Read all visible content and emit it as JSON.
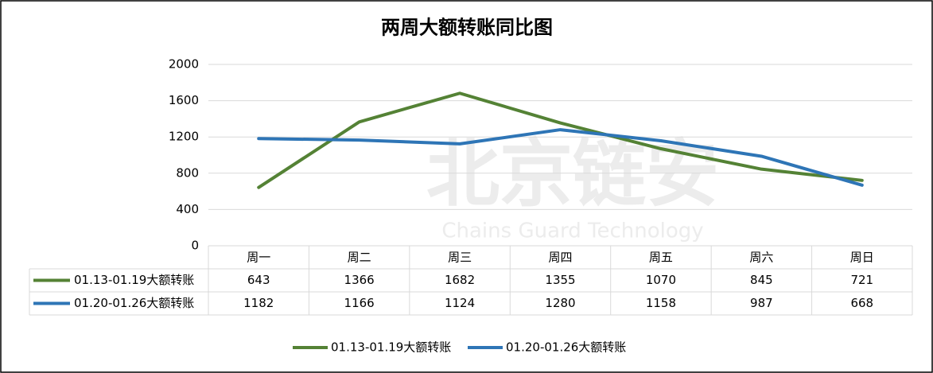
{
  "chart_data": {
    "type": "line",
    "title": "两周大额转账同比图",
    "categories": [
      "周一",
      "周二",
      "周三",
      "周四",
      "周五",
      "周六",
      "周日"
    ],
    "series": [
      {
        "name": "01.13-01.19大额转账",
        "color": "#548235",
        "values": [
          643,
          1366,
          1682,
          1355,
          1070,
          845,
          721
        ]
      },
      {
        "name": "01.20-01.26大额转账",
        "color": "#2e75b6",
        "values": [
          1182,
          1166,
          1124,
          1280,
          1158,
          987,
          668
        ]
      }
    ],
    "ylim": [
      0,
      2000
    ],
    "yticks": [
      0,
      400,
      800,
      1200,
      1600,
      2000
    ],
    "grid": true,
    "legend": "bottom",
    "watermark": [
      "北京链安",
      "Chains Guard Technology"
    ]
  }
}
